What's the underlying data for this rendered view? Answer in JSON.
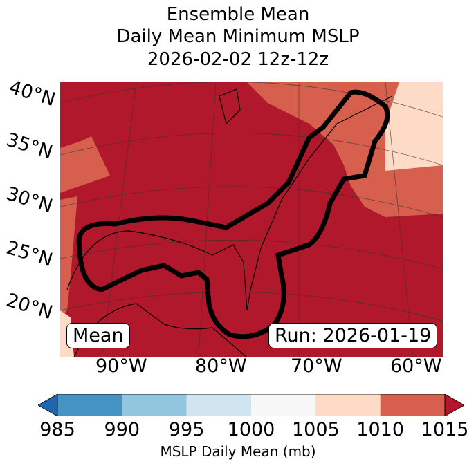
{
  "title": {
    "line1": "Ensemble Mean",
    "line2": "Daily Mean Minimum MSLP",
    "line3": "2026-02-02 12z-12z"
  },
  "lat_labels": [
    "40°N",
    "35°N",
    "30°N",
    "25°N",
    "20°N"
  ],
  "lon_labels": [
    "90°W",
    "80°W",
    "70°W",
    "60°W"
  ],
  "left_box": "Mean",
  "right_box": "Run: 2026-01-19",
  "colorbar": {
    "ticks": [
      "985",
      "990",
      "995",
      "1000",
      "1005",
      "1010",
      "1015"
    ],
    "colors": [
      "#4393c3",
      "#92c5de",
      "#d1e5f0",
      "#f7f7f7",
      "#fddbc7",
      "#d6604d"
    ],
    "under_color": "#2166ac",
    "over_color": "#b2182b",
    "label": "MSLP Daily Mean (mb)"
  }
}
